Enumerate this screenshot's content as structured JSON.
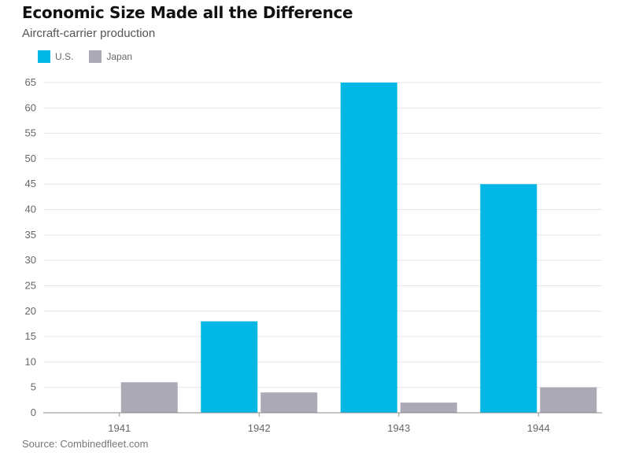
{
  "header": {
    "title": "Economic Size Made all the Difference",
    "subtitle": "Aircraft-carrier production"
  },
  "footer": {
    "source": "Source: Combinedfleet.com"
  },
  "chart_data": {
    "type": "bar",
    "categories": [
      "1941",
      "1942",
      "1943",
      "1944"
    ],
    "series": [
      {
        "name": "U.S.",
        "color": "#00b7e6",
        "values": [
          0,
          18,
          65,
          45
        ]
      },
      {
        "name": "Japan",
        "color": "#aaa9b5",
        "values": [
          6,
          4,
          2,
          5
        ]
      }
    ],
    "ylim": [
      0,
      65
    ],
    "yticks": [
      0,
      5,
      10,
      15,
      20,
      25,
      30,
      35,
      40,
      45,
      50,
      55,
      60,
      65
    ],
    "grid": true,
    "legend": "top-left",
    "xlabel": "",
    "ylabel": ""
  }
}
